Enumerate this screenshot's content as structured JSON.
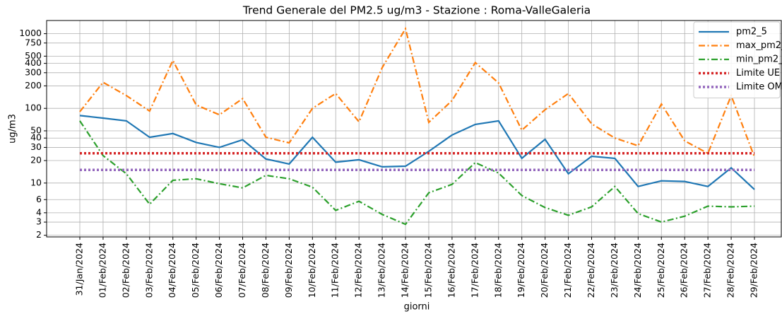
{
  "chart_data": {
    "type": "line",
    "title": "Trend Generale del PM2.5 ug/m3 - Stazione : Roma-ValleGaleria",
    "xlabel": "giorni",
    "ylabel": "ug/m3",
    "categories": [
      "31/Jan/2024",
      "01/Feb/2024",
      "02/Feb/2024",
      "03/Feb/2024",
      "04/Feb/2024",
      "05/Feb/2024",
      "06/Feb/2024",
      "07/Feb/2024",
      "08/Feb/2024",
      "09/Feb/2024",
      "10/Feb/2024",
      "11/Feb/2024",
      "12/Feb/2024",
      "13/Feb/2024",
      "14/Feb/2024",
      "15/Feb/2024",
      "16/Feb/2024",
      "17/Feb/2024",
      "18/Feb/2024",
      "19/Feb/2024",
      "20/Feb/2024",
      "21/Feb/2024",
      "22/Feb/2024",
      "23/Feb/2024",
      "24/Feb/2024",
      "25/Feb/2024",
      "26/Feb/2024",
      "27/Feb/2024",
      "28/Feb/2024",
      "29/Feb/2024"
    ],
    "series": [
      {
        "name": "pm2_5",
        "color": "#1f77b4",
        "linestyle": "solid",
        "values": [
          80,
          74,
          68,
          41,
          46,
          35,
          30,
          38,
          21,
          18,
          41,
          19,
          20.5,
          16.5,
          16.8,
          26.6,
          44,
          61,
          68,
          21.4,
          38.5,
          13.3,
          22.8,
          21.4,
          9,
          10.7,
          10.5,
          9,
          16,
          8.2
        ]
      },
      {
        "name": "max_pm2_5",
        "color": "#ff7f0e",
        "linestyle": "dashdot",
        "values": [
          90,
          223,
          148,
          92,
          438,
          111,
          82,
          135,
          41,
          34.5,
          100,
          158,
          66,
          352,
          1165,
          65,
          127,
          410,
          219,
          51,
          96,
          158,
          62,
          40,
          31.6,
          114,
          36.8,
          24.9,
          148,
          22.3
        ]
      },
      {
        "name": "min_pm2_5",
        "color": "#2ca02c",
        "linestyle": "dashdot",
        "values": [
          68,
          23.3,
          13.3,
          5.2,
          10.9,
          11.4,
          9.8,
          8.6,
          12.7,
          11.4,
          8.8,
          4.3,
          5.7,
          3.8,
          2.8,
          7.4,
          9.6,
          18.8,
          13.6,
          6.8,
          4.7,
          3.7,
          4.8,
          9,
          3.9,
          3.0,
          3.6,
          4.9,
          4.8,
          4.9
        ]
      },
      {
        "name": "Limite UE",
        "color": "#d62728",
        "linestyle": "dotted",
        "values": [
          25,
          25,
          25,
          25,
          25,
          25,
          25,
          25,
          25,
          25,
          25,
          25,
          25,
          25,
          25,
          25,
          25,
          25,
          25,
          25,
          25,
          25,
          25,
          25,
          25,
          25,
          25,
          25,
          25,
          25
        ]
      },
      {
        "name": "Limite OMS",
        "color": "#9467bd",
        "linestyle": "dotted",
        "values": [
          15,
          15,
          15,
          15,
          15,
          15,
          15,
          15,
          15,
          15,
          15,
          15,
          15,
          15,
          15,
          15,
          15,
          15,
          15,
          15,
          15,
          15,
          15,
          15,
          15,
          15,
          15,
          15,
          15,
          15
        ]
      }
    ],
    "ylim": [
      1.9,
      1500
    ],
    "yscale": "log",
    "yticks": [
      2,
      3,
      4,
      6,
      10,
      20,
      30,
      40,
      50,
      100,
      200,
      300,
      400,
      500,
      750,
      1000
    ],
    "grid": true,
    "legend": "upper right"
  }
}
